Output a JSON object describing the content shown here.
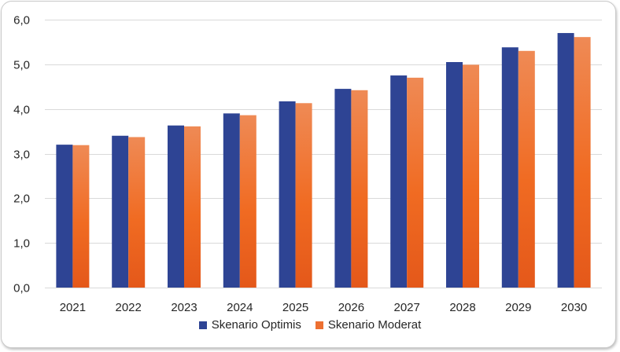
{
  "chart_data": {
    "type": "bar",
    "title": "",
    "xlabel": "",
    "ylabel": "",
    "categories": [
      "2021",
      "2022",
      "2023",
      "2024",
      "2025",
      "2026",
      "2027",
      "2028",
      "2029",
      "2030"
    ],
    "ylim": [
      0,
      6
    ],
    "yticks": [
      "0,0",
      "1,0",
      "2,0",
      "3,0",
      "4,0",
      "5,0",
      "6,0"
    ],
    "grid": true,
    "legend_position": "bottom",
    "series": [
      {
        "name": "Skenario Optimis",
        "color": "#2e4494",
        "values": [
          3.2,
          3.4,
          3.63,
          3.9,
          4.17,
          4.45,
          4.75,
          5.05,
          5.38,
          5.7
        ]
      },
      {
        "name": "Skenario Moderat",
        "color": "#ed7031",
        "values": [
          3.19,
          3.37,
          3.61,
          3.86,
          4.13,
          4.42,
          4.7,
          4.99,
          5.3,
          5.61
        ]
      }
    ]
  }
}
